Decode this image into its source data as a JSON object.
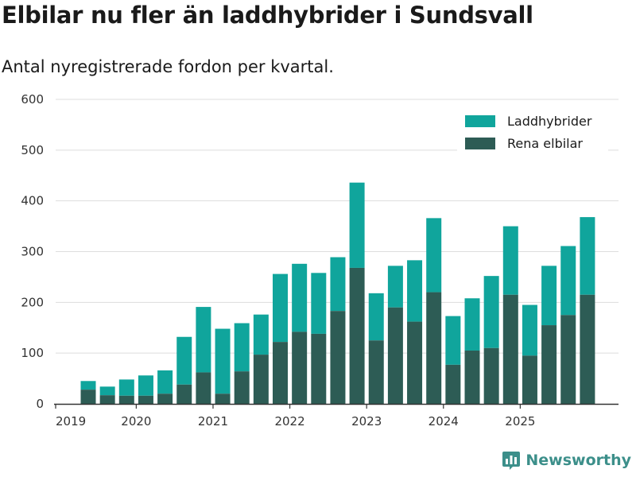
{
  "title": "Elbilar nu fler än laddhybrider i Sundsvall",
  "subtitle": "Antal nyregistrerade fordon per kvartal.",
  "brand": "Newsworthy",
  "colors": {
    "laddhybrider": "#10a59c",
    "elbilar": "#2d5c55",
    "grid": "#dddddd",
    "axis": "#333333",
    "brand": "#3c8f8a"
  },
  "chart_data": {
    "type": "bar",
    "stacked": true,
    "title": "Elbilar nu fler än laddhybrider i Sundsvall",
    "subtitle": "Antal nyregistrerade fordon per kvartal.",
    "xlabel": "",
    "ylabel": "",
    "ylim": [
      0,
      600
    ],
    "yticks": [
      "0",
      "100",
      "200",
      "300",
      "400",
      "500",
      "600"
    ],
    "ytick_values": [
      0,
      100,
      200,
      300,
      400,
      500,
      600
    ],
    "grid": true,
    "legend_position": "top-right",
    "xtick_labels": [
      "2019",
      "2020",
      "2021",
      "2022",
      "2023",
      "2024",
      "2025"
    ],
    "xtick_before_bar_index": [
      0,
      3,
      7,
      11,
      15,
      19,
      23
    ],
    "categories": [
      "2019 Q2",
      "2019 Q3",
      "2019 Q4",
      "2020 Q1",
      "2020 Q2",
      "2020 Q3",
      "2020 Q4",
      "2021 Q1",
      "2021 Q2",
      "2021 Q3",
      "2021 Q4",
      "2022 Q1",
      "2022 Q2",
      "2022 Q3",
      "2022 Q4",
      "2023 Q1",
      "2023 Q2",
      "2023 Q3",
      "2023 Q4",
      "2024 Q1",
      "2024 Q2",
      "2024 Q3",
      "2024 Q4",
      "2025 Q1",
      "2025 Q2",
      "2025 Q3",
      "2025 Q4"
    ],
    "series": [
      {
        "name": "Rena elbilar",
        "color": "#2d5c55",
        "values": [
          28,
          17,
          16,
          16,
          20,
          38,
          62,
          20,
          64,
          97,
          122,
          142,
          138,
          183,
          268,
          125,
          190,
          162,
          220,
          77,
          105,
          110,
          215,
          95,
          155,
          175,
          215
        ]
      },
      {
        "name": "Laddhybrider",
        "color": "#10a59c",
        "values": [
          17,
          17,
          32,
          40,
          46,
          94,
          129,
          128,
          95,
          79,
          134,
          134,
          120,
          106,
          168,
          93,
          82,
          121,
          146,
          96,
          103,
          142,
          135,
          100,
          117,
          136,
          153
        ]
      }
    ],
    "legend": [
      "Laddhybrider",
      "Rena elbilar"
    ]
  }
}
